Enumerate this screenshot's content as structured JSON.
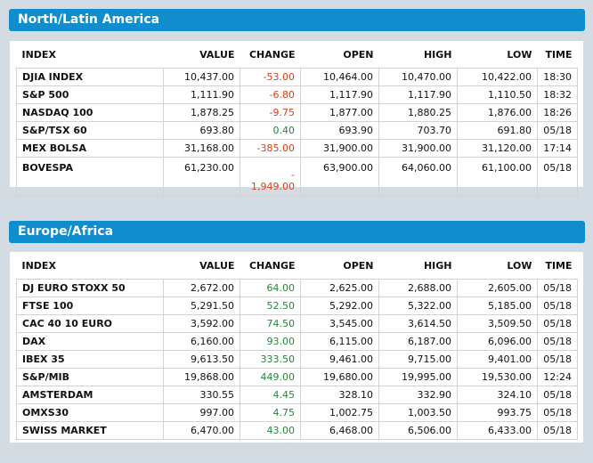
{
  "columns": {
    "index": "INDEX",
    "value": "VALUE",
    "change": "CHANGE",
    "open": "OPEN",
    "high": "HIGH",
    "low": "LOW",
    "time": "TIME"
  },
  "north_america": {
    "title": "North/Latin America",
    "rows": [
      {
        "index": "DJIA INDEX",
        "value": "10,437.00",
        "change": "-53.00",
        "open": "10,464.00",
        "high": "10,470.00",
        "low": "10,422.00",
        "time": "18:30",
        "dir": "neg"
      },
      {
        "index": "S&P 500",
        "value": "1,111.90",
        "change": "-6.80",
        "open": "1,117.90",
        "high": "1,117.90",
        "low": "1,110.50",
        "time": "18:32",
        "dir": "neg"
      },
      {
        "index": "NASDAQ 100",
        "value": "1,878.25",
        "change": "-9.75",
        "open": "1,877.00",
        "high": "1,880.25",
        "low": "1,876.00",
        "time": "18:26",
        "dir": "neg"
      },
      {
        "index": "S&P/TSX 60",
        "value": "693.80",
        "change": "0.40",
        "open": "693.90",
        "high": "703.70",
        "low": "691.80",
        "time": "05/18",
        "dir": "pos"
      },
      {
        "index": "MEX BOLSA",
        "value": "31,168.00",
        "change": "-385.00",
        "open": "31,900.00",
        "high": "31,900.00",
        "low": "31,120.00",
        "time": "17:14",
        "dir": "neg"
      },
      {
        "index": "BOVESPA",
        "value": "61,230.00",
        "change_line1": "-",
        "change_line2": "1,949.00",
        "open": "63,900.00",
        "high": "64,060.00",
        "low": "61,100.00",
        "time": "05/18",
        "dir": "neg"
      }
    ]
  },
  "europe": {
    "title": "Europe/Africa",
    "rows": [
      {
        "index": "DJ EURO STOXX 50",
        "value": "2,672.00",
        "change": "64.00",
        "open": "2,625.00",
        "high": "2,688.00",
        "low": "2,605.00",
        "time": "05/18",
        "dir": "pos"
      },
      {
        "index": "FTSE 100",
        "value": "5,291.50",
        "change": "52.50",
        "open": "5,292.00",
        "high": "5,322.00",
        "low": "5,185.00",
        "time": "05/18",
        "dir": "pos"
      },
      {
        "index": "CAC 40 10 EURO",
        "value": "3,592.00",
        "change": "74.50",
        "open": "3,545.00",
        "high": "3,614.50",
        "low": "3,509.50",
        "time": "05/18",
        "dir": "pos"
      },
      {
        "index": "DAX",
        "value": "6,160.00",
        "change": "93.00",
        "open": "6,115.00",
        "high": "6,187.00",
        "low": "6,096.00",
        "time": "05/18",
        "dir": "pos"
      },
      {
        "index": "IBEX 35",
        "value": "9,613.50",
        "change": "333.50",
        "open": "9,461.00",
        "high": "9,715.00",
        "low": "9,401.00",
        "time": "05/18",
        "dir": "pos"
      },
      {
        "index": "S&P/MIB",
        "value": "19,868.00",
        "change": "449.00",
        "open": "19,680.00",
        "high": "19,995.00",
        "low": "19,530.00",
        "time": "12:24",
        "dir": "pos"
      },
      {
        "index": "AMSTERDAM",
        "value": "330.55",
        "change": "4.45",
        "open": "328.10",
        "high": "332.90",
        "low": "324.10",
        "time": "05/18",
        "dir": "pos"
      },
      {
        "index": "OMXS30",
        "value": "997.00",
        "change": "4.75",
        "open": "1,002.75",
        "high": "1,003.50",
        "low": "993.75",
        "time": "05/18",
        "dir": "pos"
      },
      {
        "index": "SWISS MARKET",
        "value": "6,470.00",
        "change": "43.00",
        "open": "6,468.00",
        "high": "6,506.00",
        "low": "6,433.00",
        "time": "05/18",
        "dir": "pos"
      }
    ]
  }
}
